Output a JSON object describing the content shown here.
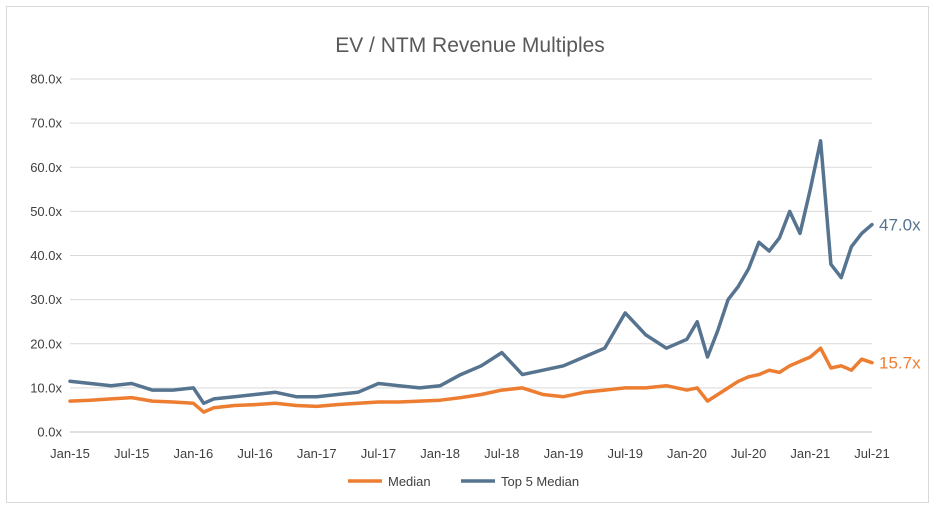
{
  "chart_data": {
    "type": "line",
    "title": "EV / NTM Revenue Multiples",
    "xlabel": "",
    "ylabel": "",
    "ylim": [
      0,
      80
    ],
    "y_ticks": [
      "0.0x",
      "10.0x",
      "20.0x",
      "30.0x",
      "40.0x",
      "50.0x",
      "60.0x",
      "70.0x",
      "80.0x"
    ],
    "x_ticks": [
      "Jan-15",
      "Jul-15",
      "Jan-16",
      "Jul-16",
      "Jan-17",
      "Jul-17",
      "Jan-18",
      "Jul-18",
      "Jan-19",
      "Jul-19",
      "Jan-20",
      "Jul-20",
      "Jan-21",
      "Jul-21"
    ],
    "grid": "horizontal",
    "legend_position": "bottom",
    "series": [
      {
        "name": "Median",
        "color": "#ed7d31",
        "end_label": "15.7x",
        "x": [
          "Jan-15",
          "Mar-15",
          "May-15",
          "Jul-15",
          "Sep-15",
          "Nov-15",
          "Jan-16",
          "Feb-16",
          "Mar-16",
          "May-16",
          "Jul-16",
          "Sep-16",
          "Nov-16",
          "Jan-17",
          "Mar-17",
          "May-17",
          "Jul-17",
          "Sep-17",
          "Nov-17",
          "Jan-18",
          "Mar-18",
          "May-18",
          "Jul-18",
          "Sep-18",
          "Nov-18",
          "Jan-19",
          "Mar-19",
          "May-19",
          "Jul-19",
          "Sep-19",
          "Nov-19",
          "Jan-20",
          "Feb-20",
          "Mar-20",
          "Apr-20",
          "May-20",
          "Jun-20",
          "Jul-20",
          "Aug-20",
          "Sep-20",
          "Oct-20",
          "Nov-20",
          "Dec-20",
          "Jan-21",
          "Feb-21",
          "Mar-21",
          "Apr-21",
          "May-21",
          "Jun-21",
          "Jul-21"
        ],
        "values": [
          7.0,
          7.2,
          7.5,
          7.8,
          7.0,
          6.8,
          6.5,
          4.5,
          5.5,
          6.0,
          6.2,
          6.5,
          6.0,
          5.8,
          6.2,
          6.5,
          6.8,
          6.8,
          7.0,
          7.2,
          7.8,
          8.5,
          9.5,
          10.0,
          8.5,
          8.0,
          9.0,
          9.5,
          10.0,
          10.0,
          10.5,
          9.5,
          10.0,
          7.0,
          8.5,
          10.0,
          11.5,
          12.5,
          13.0,
          14.0,
          13.5,
          15.0,
          16.0,
          17.0,
          19.0,
          14.5,
          15.0,
          14.0,
          16.5,
          15.7
        ]
      },
      {
        "name": "Top 5 Median",
        "color": "#56748f",
        "end_label": "47.0x",
        "x": [
          "Jan-15",
          "Mar-15",
          "May-15",
          "Jul-15",
          "Sep-15",
          "Nov-15",
          "Jan-16",
          "Feb-16",
          "Mar-16",
          "May-16",
          "Jul-16",
          "Sep-16",
          "Nov-16",
          "Jan-17",
          "Mar-17",
          "May-17",
          "Jul-17",
          "Sep-17",
          "Nov-17",
          "Jan-18",
          "Mar-18",
          "May-18",
          "Jul-18",
          "Sep-18",
          "Nov-18",
          "Jan-19",
          "Mar-19",
          "May-19",
          "Jul-19",
          "Sep-19",
          "Nov-19",
          "Jan-20",
          "Feb-20",
          "Mar-20",
          "Apr-20",
          "May-20",
          "Jun-20",
          "Jul-20",
          "Aug-20",
          "Sep-20",
          "Oct-20",
          "Nov-20",
          "Dec-20",
          "Jan-21",
          "Feb-21",
          "Mar-21",
          "Apr-21",
          "May-21",
          "Jun-21",
          "Jul-21"
        ],
        "values": [
          11.5,
          11.0,
          10.5,
          11.0,
          9.5,
          9.5,
          10.0,
          6.5,
          7.5,
          8.0,
          8.5,
          9.0,
          8.0,
          8.0,
          8.5,
          9.0,
          11.0,
          10.5,
          10.0,
          10.5,
          13.0,
          15.0,
          18.0,
          13.0,
          14.0,
          15.0,
          17.0,
          19.0,
          27.0,
          22.0,
          19.0,
          21.0,
          25.0,
          17.0,
          23.0,
          30.0,
          33.0,
          37.0,
          43.0,
          41.0,
          44.0,
          50.0,
          45.0,
          55.0,
          66.0,
          38.0,
          35.0,
          42.0,
          45.0,
          47.0
        ]
      }
    ]
  }
}
